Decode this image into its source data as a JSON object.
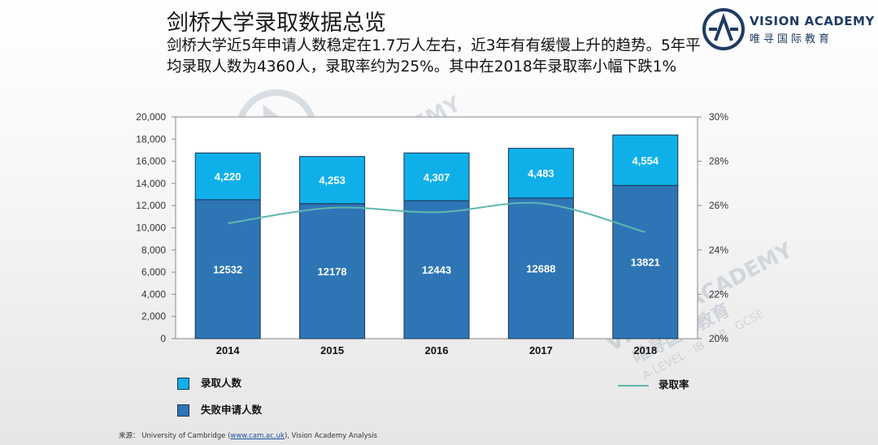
{
  "page": {
    "title": "剑桥大学录取数据总览",
    "subtitle": "剑桥大学近5年申请人数稳定在1.7万人左右，近3年有有缓慢上升的趋势。5年平均录取人数为4360人，录取率约为25%。其中在2018年录取率小幅下跌1%"
  },
  "logo": {
    "name": "VISION ACADEMY",
    "name_cn": "唯寻国际教育",
    "mark": "A"
  },
  "watermark": {
    "text": "VISION ACADEMY",
    "text_cn": "唯寻国际教育",
    "sub": "A-LEVEL · IB · AP · GCSE"
  },
  "source": {
    "prefix": "来源：  University of Cambridge  (",
    "link": "www.cam.ac.uk",
    "suffix": "), Vision Academy Analysis"
  },
  "chart_data": {
    "type": "bar",
    "stacked": true,
    "categories": [
      "2014",
      "2015",
      "2016",
      "2017",
      "2018"
    ],
    "series": [
      {
        "name": "失败申请人数",
        "values": [
          12532,
          12178,
          12443,
          12688,
          13821
        ],
        "color": "#2e75b6"
      },
      {
        "name": "录取人数",
        "values": [
          4220,
          4253,
          4307,
          4483,
          4554
        ],
        "color": "#0fb0ea"
      }
    ],
    "line_series": {
      "name": "录取率",
      "values": [
        25.2,
        25.9,
        25.7,
        26.1,
        24.8
      ],
      "axis": "right",
      "color": "#5fb7b0"
    },
    "y_left": {
      "min": 0,
      "max": 20000,
      "step": 2000,
      "ticks": [
        "0",
        "2,000",
        "4,000",
        "6,000",
        "8,000",
        "10,000",
        "12,000",
        "14,000",
        "16,000",
        "18,000",
        "20,000"
      ]
    },
    "y_right": {
      "min": 20,
      "max": 30,
      "step": 2,
      "ticks": [
        "20%",
        "22%",
        "24%",
        "26%",
        "28%",
        "30%"
      ]
    },
    "bottom_labels": [
      "12532",
      "12178",
      "12443",
      "12688",
      "13821"
    ],
    "top_labels": [
      "4,220",
      "4,253",
      "4,307",
      "4,483",
      "4,554"
    ],
    "legend": [
      {
        "name": "录取人数",
        "kind": "box",
        "color": "#0fb0ea"
      },
      {
        "name": "失败申请人数",
        "kind": "box",
        "color": "#2e75b6"
      },
      {
        "name": "录取率",
        "kind": "line",
        "color": "#5fb7b0"
      }
    ],
    "grid": false
  }
}
